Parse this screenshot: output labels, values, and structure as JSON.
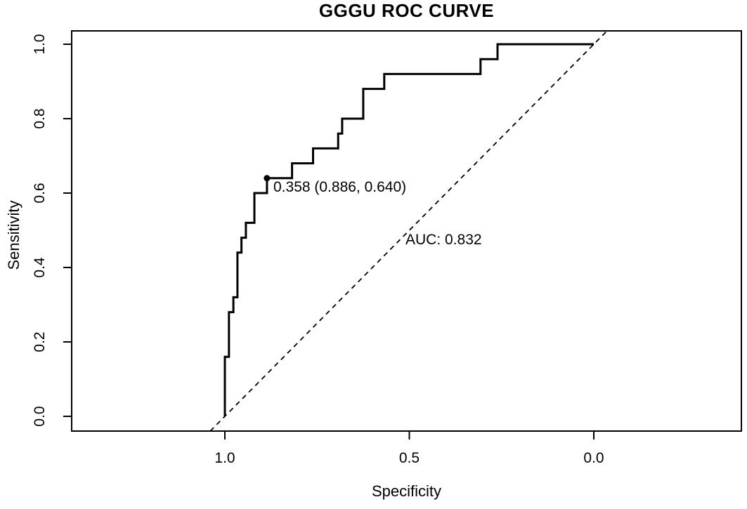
{
  "title": "GGGU ROC CURVE",
  "axes": {
    "x_label": "Specificity",
    "y_label": "Sensitivity",
    "x_tick_labels": [
      "1.0",
      "0.5",
      "0.0"
    ],
    "y_tick_labels": [
      "0.0",
      "0.2",
      "0.4",
      "0.6",
      "0.8",
      "1.0"
    ]
  },
  "annotations": {
    "threshold_label": "0.358 (0.886, 0.640)",
    "auc_label": "AUC: 0.832"
  },
  "colors": {
    "foreground": "#000000",
    "background": "#ffffff"
  },
  "chart_data": {
    "type": "line",
    "subtype": "roc-step-curve",
    "title": "GGGU ROC CURVE",
    "xlabel": "Specificity",
    "ylabel": "Sensitivity",
    "x_axis_reversed": true,
    "x_ticks": [
      1.0,
      0.5,
      0.0
    ],
    "y_ticks": [
      0.0,
      0.2,
      0.4,
      0.6,
      0.8,
      1.0
    ],
    "xlim": [
      1.0,
      0.0
    ],
    "ylim": [
      0.0,
      1.0
    ],
    "grid": false,
    "auc": 0.832,
    "best_threshold": {
      "threshold": 0.358,
      "specificity": 0.886,
      "sensitivity": 0.64,
      "label": "0.358 (0.886, 0.640)"
    },
    "reference_line": {
      "style": "dashed",
      "description": "chance diagonal, sensitivity = 1 - specificity"
    },
    "series": [
      {
        "name": "ROC curve",
        "points": [
          [
            1.0,
            0.0
          ],
          [
            1.0,
            0.16
          ],
          [
            0.989,
            0.16
          ],
          [
            0.989,
            0.28
          ],
          [
            0.977,
            0.28
          ],
          [
            0.977,
            0.32
          ],
          [
            0.966,
            0.32
          ],
          [
            0.966,
            0.44
          ],
          [
            0.955,
            0.44
          ],
          [
            0.955,
            0.48
          ],
          [
            0.943,
            0.48
          ],
          [
            0.943,
            0.52
          ],
          [
            0.92,
            0.52
          ],
          [
            0.92,
            0.6
          ],
          [
            0.886,
            0.6
          ],
          [
            0.886,
            0.64
          ],
          [
            0.818,
            0.64
          ],
          [
            0.818,
            0.68
          ],
          [
            0.761,
            0.68
          ],
          [
            0.761,
            0.72
          ],
          [
            0.693,
            0.72
          ],
          [
            0.693,
            0.76
          ],
          [
            0.682,
            0.76
          ],
          [
            0.682,
            0.8
          ],
          [
            0.625,
            0.8
          ],
          [
            0.625,
            0.88
          ],
          [
            0.568,
            0.88
          ],
          [
            0.568,
            0.92
          ],
          [
            0.307,
            0.92
          ],
          [
            0.307,
            0.96
          ],
          [
            0.261,
            0.96
          ],
          [
            0.261,
            1.0
          ],
          [
            0.0,
            1.0
          ]
        ]
      }
    ]
  }
}
